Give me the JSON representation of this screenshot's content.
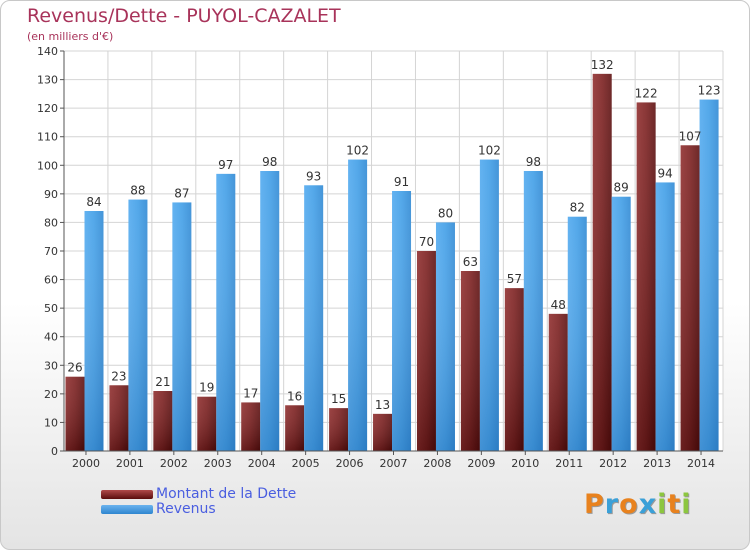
{
  "title": "Revenus/Dette - PUYOL-CAZALET",
  "subtitle": "(en milliers d'€)",
  "colors": {
    "title": "#a8335a",
    "dette": "#7a1a1a",
    "revenus": "#4aa3e8",
    "legend_text": "#4a5ee0"
  },
  "chart_data": {
    "type": "bar",
    "title": "Revenus/Dette - PUYOL-CAZALET",
    "subtitle": "(en milliers d'€)",
    "categories": [
      "2000",
      "2001",
      "2002",
      "2003",
      "2004",
      "2005",
      "2006",
      "2007",
      "2008",
      "2009",
      "2010",
      "2011",
      "2012",
      "2013",
      "2014"
    ],
    "series": [
      {
        "name": "Montant de la Dette",
        "values": [
          26,
          23,
          21,
          19,
          17,
          16,
          15,
          13,
          70,
          63,
          57,
          48,
          132,
          122,
          107
        ]
      },
      {
        "name": "Revenus",
        "values": [
          84,
          88,
          87,
          97,
          98,
          93,
          102,
          91,
          80,
          102,
          98,
          82,
          89,
          94,
          123
        ]
      }
    ],
    "ylim": [
      0,
      140
    ],
    "yticks": [
      0,
      10,
      20,
      30,
      40,
      50,
      60,
      70,
      80,
      90,
      100,
      110,
      120,
      130,
      140
    ],
    "grid": true,
    "legend": "bottom-left"
  },
  "legend": {
    "dette_label": "Montant de la Dette",
    "revenus_label": "Revenus"
  },
  "logo": {
    "letters": [
      "P",
      "r",
      "o",
      "x",
      "i",
      "t",
      "i"
    ],
    "colors": [
      "#e8821e",
      "#3aa0d8",
      "#e8821e",
      "#3aa0d8",
      "#8cc63f",
      "#e8821e",
      "#8cc63f"
    ]
  }
}
